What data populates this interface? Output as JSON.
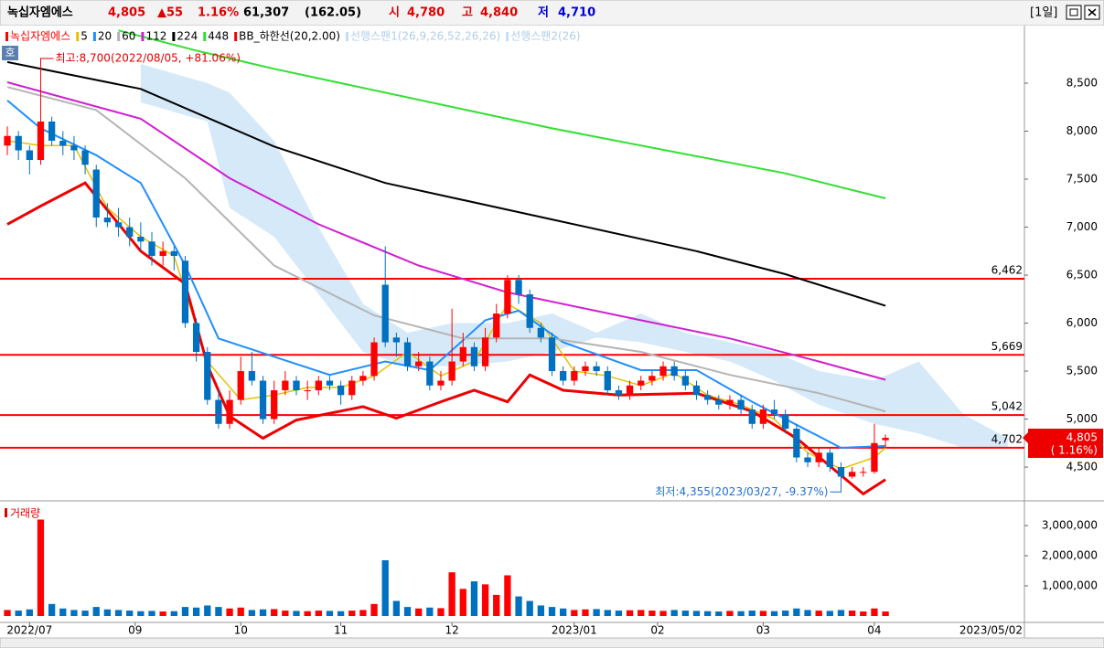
{
  "header": {
    "name": "녹십자엠에스",
    "price": "4,805",
    "change": "▲55",
    "change_pct": "1.16%",
    "volume": "61,307",
    "volume_ratio": "(162.05)",
    "open_label": "시",
    "open": "4,780",
    "high_label": "고",
    "high": "4,840",
    "low_label": "저",
    "low": "4,710",
    "period": "[1일]",
    "side_button": "호"
  },
  "chart_data": {
    "type": "candlestick",
    "name": "녹십자엠에스",
    "up_color": "#ff0000",
    "down_color": "#0070c0",
    "x": [
      0,
      1,
      2,
      3,
      4,
      5,
      6,
      7,
      8,
      9,
      10,
      11,
      12,
      13,
      14,
      15,
      16,
      17,
      18,
      19,
      20,
      21,
      22,
      23,
      24,
      25,
      26,
      27,
      28,
      29,
      30,
      31,
      32,
      33,
      34,
      35,
      36,
      37,
      38,
      39,
      40,
      41,
      42,
      43,
      44,
      45,
      46,
      47,
      48,
      49,
      50,
      51,
      52,
      53,
      54,
      55,
      56,
      57,
      58,
      59,
      60,
      61,
      62,
      63,
      64,
      65,
      66,
      67,
      68,
      69,
      70,
      71,
      72,
      73,
      74,
      75,
      76,
      77,
      78,
      79
    ],
    "open": [
      7850,
      7950,
      7800,
      7700,
      8100,
      7900,
      7850,
      7800,
      7600,
      7100,
      7050,
      7000,
      6900,
      6850,
      6700,
      6750,
      6650,
      6000,
      5700,
      5200,
      4950,
      5200,
      5500,
      5400,
      5000,
      5300,
      5400,
      5300,
      5300,
      5400,
      5350,
      5250,
      5400,
      5450,
      6400,
      5850,
      5800,
      5550,
      5600,
      5350,
      5400,
      5600,
      5750,
      5550,
      5850,
      6100,
      6450,
      6300,
      5950,
      5850,
      5500,
      5400,
      5500,
      5550,
      5500,
      5300,
      5250,
      5350,
      5400,
      5450,
      5550,
      5450,
      5350,
      5250,
      5200,
      5150,
      5200,
      5100,
      4950,
      5100,
      5050,
      4900,
      4600,
      4550,
      4650,
      4500,
      4400,
      4450,
      4450,
      4780
    ],
    "high": [
      8050,
      8000,
      7850,
      8700,
      8150,
      8000,
      7950,
      7850,
      7650,
      7250,
      7200,
      7100,
      7050,
      6950,
      6850,
      6800,
      6700,
      6050,
      5750,
      5300,
      5300,
      5650,
      5700,
      5450,
      5400,
      5500,
      5450,
      5400,
      5450,
      5450,
      5400,
      5450,
      5500,
      5850,
      6800,
      5900,
      5850,
      5700,
      5650,
      5500,
      6150,
      5900,
      5800,
      5950,
      6200,
      6500,
      6500,
      6350,
      6000,
      5900,
      5550,
      5550,
      5600,
      5600,
      5550,
      5350,
      5400,
      5450,
      5500,
      5600,
      5600,
      5500,
      5400,
      5300,
      5250,
      5250,
      5250,
      5150,
      5150,
      5200,
      5100,
      4950,
      4650,
      4700,
      4700,
      4550,
      4500,
      4500,
      4950,
      4840
    ],
    "low": [
      7750,
      7700,
      7550,
      7650,
      7850,
      7750,
      7700,
      7550,
      7000,
      7000,
      6900,
      6800,
      6750,
      6600,
      6600,
      6550,
      5950,
      5600,
      5150,
      4900,
      4900,
      5150,
      5350,
      4950,
      4950,
      5250,
      5250,
      5200,
      5250,
      5300,
      5150,
      5200,
      5350,
      5400,
      5750,
      5650,
      5500,
      5500,
      5300,
      5300,
      5350,
      5550,
      5500,
      5500,
      5800,
      6050,
      6200,
      5900,
      5800,
      5450,
      5350,
      5350,
      5450,
      5450,
      5250,
      5200,
      5200,
      5300,
      5350,
      5400,
      5400,
      5300,
      5200,
      5150,
      5100,
      5100,
      5050,
      4900,
      4900,
      5000,
      4850,
      4550,
      4500,
      4500,
      4450,
      4355,
      4380,
      4400,
      4430,
      4710
    ],
    "close": [
      7950,
      7800,
      7700,
      8100,
      7900,
      7850,
      7800,
      7650,
      7100,
      7050,
      7000,
      6900,
      6850,
      6700,
      6750,
      6700,
      6000,
      5700,
      5200,
      4950,
      5200,
      5500,
      5400,
      5000,
      5300,
      5400,
      5300,
      5300,
      5400,
      5350,
      5250,
      5400,
      5450,
      5800,
      5800,
      5800,
      5550,
      5600,
      5350,
      5400,
      5600,
      5750,
      5550,
      5850,
      6100,
      6450,
      6300,
      5950,
      5850,
      5500,
      5400,
      5500,
      5550,
      5500,
      5300,
      5250,
      5350,
      5400,
      5450,
      5550,
      5450,
      5350,
      5250,
      5200,
      5150,
      5200,
      5100,
      4950,
      5100,
      5050,
      4900,
      4600,
      4550,
      4650,
      4500,
      4400,
      4450,
      4450,
      4750,
      4805
    ],
    "xlim": [
      -0.66,
      91.5
    ],
    "xticks": [
      {
        "value": 2,
        "label": "2022/07"
      },
      {
        "value": 11.5,
        "label": "09"
      },
      {
        "value": 21,
        "label": "10"
      },
      {
        "value": 30,
        "label": "11"
      },
      {
        "value": 40,
        "label": "12"
      },
      {
        "value": 51,
        "label": "2023/01"
      },
      {
        "value": 58.5,
        "label": "02"
      },
      {
        "value": 68,
        "label": "03"
      },
      {
        "value": 78,
        "label": "04"
      }
    ],
    "date_axis_end": "2023/05/02",
    "ylim": [
      4148,
      9081
    ],
    "yticks": [
      {
        "value": 4500,
        "label": "4,500"
      },
      {
        "value": 5000,
        "label": "5,000"
      },
      {
        "value": 5500,
        "label": "5,500"
      },
      {
        "value": 6000,
        "label": "6,000"
      },
      {
        "value": 6500,
        "label": "6,500"
      },
      {
        "value": 7000,
        "label": "7,000"
      },
      {
        "value": 7500,
        "label": "7,500"
      },
      {
        "value": 8000,
        "label": "8,000"
      },
      {
        "value": 8500,
        "label": "8,500"
      }
    ],
    "series": [
      {
        "name": "5",
        "color": "#e6c000",
        "width": 1.5,
        "x": [
          0,
          3,
          6,
          9,
          12,
          15,
          18,
          21,
          24,
          27,
          30,
          33,
          36,
          39,
          42,
          45,
          48,
          51,
          54,
          57,
          60,
          63,
          66,
          69,
          72,
          75,
          78,
          79
        ],
        "values": [
          7900,
          7850,
          7850,
          7200,
          6900,
          6700,
          5600,
          5200,
          5250,
          5330,
          5330,
          5450,
          5700,
          5450,
          5600,
          6200,
          6000,
          5500,
          5450,
          5350,
          5480,
          5250,
          5150,
          5000,
          4650,
          4480,
          4600,
          4700
        ]
      },
      {
        "name": "20",
        "color": "#1e8fff",
        "width": 2,
        "x": [
          0,
          3,
          8,
          12,
          16,
          19,
          24,
          29,
          34,
          38,
          43,
          46,
          50,
          57,
          62,
          67,
          71,
          75,
          79
        ],
        "values": [
          8320,
          8030,
          7750,
          7460,
          6600,
          5840,
          5650,
          5460,
          5600,
          5510,
          6030,
          6130,
          5800,
          5510,
          5510,
          5180,
          4940,
          4700,
          4720
        ]
      },
      {
        "name": "60",
        "color": "#b4b4b4",
        "width": 2,
        "x": [
          0,
          8,
          16,
          24,
          33,
          41,
          49,
          57,
          65,
          73,
          79
        ],
        "values": [
          8460,
          8220,
          7510,
          6600,
          6080,
          5840,
          5840,
          5700,
          5460,
          5270,
          5080
        ]
      },
      {
        "name": "112",
        "color": "#d020d0",
        "width": 2,
        "x": [
          0,
          12,
          20,
          28,
          37,
          45,
          57,
          65,
          73,
          79
        ],
        "values": [
          8510,
          8130,
          7510,
          7030,
          6600,
          6320,
          6030,
          5840,
          5600,
          5410
        ]
      },
      {
        "name": "224",
        "color": "#000000",
        "width": 2,
        "x": [
          0,
          12,
          24,
          34,
          49,
          62,
          70,
          79
        ],
        "values": [
          8720,
          8440,
          7840,
          7460,
          7080,
          6750,
          6510,
          6180
        ]
      },
      {
        "name": "448",
        "color": "#30e030",
        "width": 2,
        "x": [
          10,
          17,
          24,
          49,
          70,
          79
        ],
        "values": [
          9050,
          8840,
          8650,
          8030,
          7560,
          7300
        ]
      },
      {
        "name": "BB_하한선(20,2.00)",
        "color": "#ee0000",
        "width": 3,
        "x": [
          0,
          3,
          7,
          8,
          12,
          16,
          18,
          20,
          23,
          26,
          32,
          35,
          39,
          42,
          45,
          47,
          50,
          55,
          62,
          67,
          71,
          77,
          79
        ],
        "values": [
          7030,
          7220,
          7460,
          7320,
          6750,
          6410,
          5560,
          5030,
          4800,
          4990,
          5130,
          5010,
          5180,
          5300,
          5180,
          5460,
          5300,
          5250,
          5270,
          5080,
          4800,
          4220,
          4370
        ]
      }
    ],
    "cloud": {
      "color": "#d6e9f8",
      "x": [
        12,
        18,
        20,
        24,
        28,
        32,
        36,
        40,
        45,
        49,
        53,
        57,
        61,
        65,
        69,
        73,
        78,
        82,
        86,
        90
      ],
      "span1": {
        "name": "선행스팬1(26,9,26,52,26,26)",
        "values": [
          8700,
          8500,
          8400,
          7900,
          7000,
          6200,
          5900,
          6000,
          6000,
          6100,
          5900,
          6100,
          5900,
          5800,
          5700,
          5500,
          5400,
          5600,
          5050,
          4800
        ]
      },
      "span2": {
        "name": "선행스팬2(26)",
        "values": [
          8300,
          8100,
          7200,
          6900,
          6300,
          5700,
          5550,
          5550,
          5600,
          5700,
          5850,
          5800,
          5700,
          5600,
          5400,
          5150,
          4950,
          4850,
          4700,
          4700
        ]
      }
    },
    "hline_color": "#ff0000",
    "hlines": [
      {
        "value": 6462,
        "label": "6,462"
      },
      {
        "value": 5669,
        "label": "5,669"
      },
      {
        "value": 5042,
        "label": "5,042"
      },
      {
        "value": 4702,
        "label": "4,702"
      }
    ],
    "annotations": [
      {
        "text": "최고:8,700(2022/08/05, +81.06%)",
        "x": 3,
        "y": 8700
      },
      {
        "text": "최저:4,355(2023/03/27, -9.37%)",
        "x": 75,
        "y": 4355
      }
    ],
    "last_price": {
      "value": 4805,
      "label": "4,805",
      "pct_label": "( 1.16%)"
    },
    "volume": {
      "title": "거래량",
      "values": [
        200000,
        180000,
        220000,
        3200000,
        400000,
        250000,
        200000,
        180000,
        300000,
        220000,
        200000,
        180000,
        160000,
        170000,
        150000,
        160000,
        300000,
        280000,
        350000,
        300000,
        250000,
        280000,
        200000,
        220000,
        230000,
        180000,
        170000,
        160000,
        180000,
        170000,
        160000,
        180000,
        200000,
        400000,
        1850000,
        500000,
        300000,
        250000,
        280000,
        260000,
        1450000,
        900000,
        1150000,
        1050000,
        700000,
        1350000,
        650000,
        500000,
        350000,
        300000,
        250000,
        200000,
        220000,
        230000,
        200000,
        180000,
        190000,
        200000,
        180000,
        170000,
        200000,
        180000,
        170000,
        160000,
        150000,
        170000,
        160000,
        180000,
        170000,
        160000,
        180000,
        250000,
        200000,
        180000,
        170000,
        200000,
        180000,
        150000,
        250000,
        150000
      ],
      "ylim": [
        0,
        3700000
      ],
      "yticks": [
        {
          "value": 1000000,
          "label": "1,000,000"
        },
        {
          "value": 2000000,
          "label": "2,000,000"
        },
        {
          "value": 3000000,
          "label": "3,000,000"
        }
      ]
    }
  }
}
